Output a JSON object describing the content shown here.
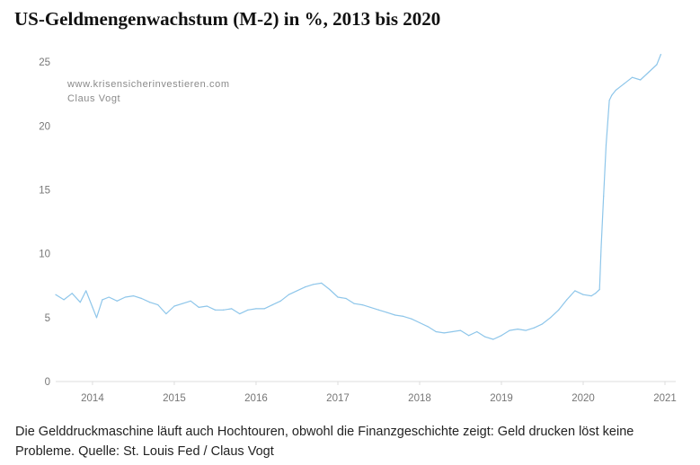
{
  "title": "US-Geldmengenwachstum (M-2) in %, 2013 bis 2020",
  "caption": "Die Gelddruckmaschine läuft auch Hochtouren, obwohl die Finanzgeschichte zeigt: Geld drucken löst keine Probleme. Quelle: St. Louis Fed / Claus Vogt",
  "watermark": {
    "line1": "www.krisensicherinvestieren.com",
    "line2": "Claus Vogt"
  },
  "colors": {
    "line": "#8ec6ea",
    "axis": "#dddddd",
    "tick_text": "#777777"
  },
  "chart_data": {
    "type": "line",
    "title": "US-Geldmengenwachstum (M-2) in %, 2013 bis 2020",
    "xlabel": "",
    "ylabel": "",
    "xlim": [
      2013.55,
      2021.0
    ],
    "ylim": [
      0,
      25.5
    ],
    "x_ticks": [
      "2014",
      "2015",
      "2016",
      "2017",
      "2018",
      "2019",
      "2020",
      "2021"
    ],
    "y_ticks": [
      "0",
      "5",
      "10",
      "15",
      "20",
      "25"
    ],
    "grid": false,
    "series": [
      {
        "x": [
          2013.55,
          2013.65,
          2013.75,
          2013.85,
          2013.92,
          2014.0,
          2014.05,
          2014.12,
          2014.2,
          2014.3,
          2014.4,
          2014.5,
          2014.6,
          2014.7,
          2014.8,
          2014.9,
          2015.0,
          2015.1,
          2015.2,
          2015.3,
          2015.4,
          2015.5,
          2015.6,
          2015.7,
          2015.8,
          2015.9,
          2016.0,
          2016.1,
          2016.2,
          2016.3,
          2016.4,
          2016.5,
          2016.6,
          2016.7,
          2016.8,
          2016.9,
          2017.0,
          2017.1,
          2017.2,
          2017.3,
          2017.4,
          2017.5,
          2017.6,
          2017.7,
          2017.8,
          2017.9,
          2018.0,
          2018.1,
          2018.2,
          2018.3,
          2018.4,
          2018.5,
          2018.6,
          2018.7,
          2018.8,
          2018.9,
          2019.0,
          2019.1,
          2019.2,
          2019.3,
          2019.4,
          2019.5,
          2019.6,
          2019.7,
          2019.8,
          2019.9,
          2020.0,
          2020.1,
          2020.15,
          2020.2,
          2020.22,
          2020.25,
          2020.28,
          2020.32,
          2020.35,
          2020.4,
          2020.5,
          2020.6,
          2020.7,
          2020.8,
          2020.9,
          2020.95
        ],
        "values": [
          6.8,
          6.4,
          6.9,
          6.2,
          7.1,
          5.8,
          5.0,
          6.4,
          6.6,
          6.3,
          6.6,
          6.7,
          6.5,
          6.2,
          6.0,
          5.3,
          5.9,
          6.1,
          6.3,
          5.8,
          5.9,
          5.6,
          5.6,
          5.7,
          5.3,
          5.6,
          5.7,
          5.7,
          6.0,
          6.3,
          6.8,
          7.1,
          7.4,
          7.6,
          7.7,
          7.2,
          6.6,
          6.5,
          6.1,
          6.0,
          5.8,
          5.6,
          5.4,
          5.2,
          5.1,
          4.9,
          4.6,
          4.3,
          3.9,
          3.8,
          3.9,
          4.0,
          3.6,
          3.9,
          3.5,
          3.3,
          3.6,
          4.0,
          4.1,
          4.0,
          4.2,
          4.5,
          5.0,
          5.6,
          6.4,
          7.1,
          6.8,
          6.7,
          6.9,
          7.2,
          10.5,
          14.5,
          18.5,
          22.0,
          22.4,
          22.8,
          23.3,
          23.8,
          23.6,
          24.2,
          24.8,
          25.6
        ]
      }
    ]
  }
}
